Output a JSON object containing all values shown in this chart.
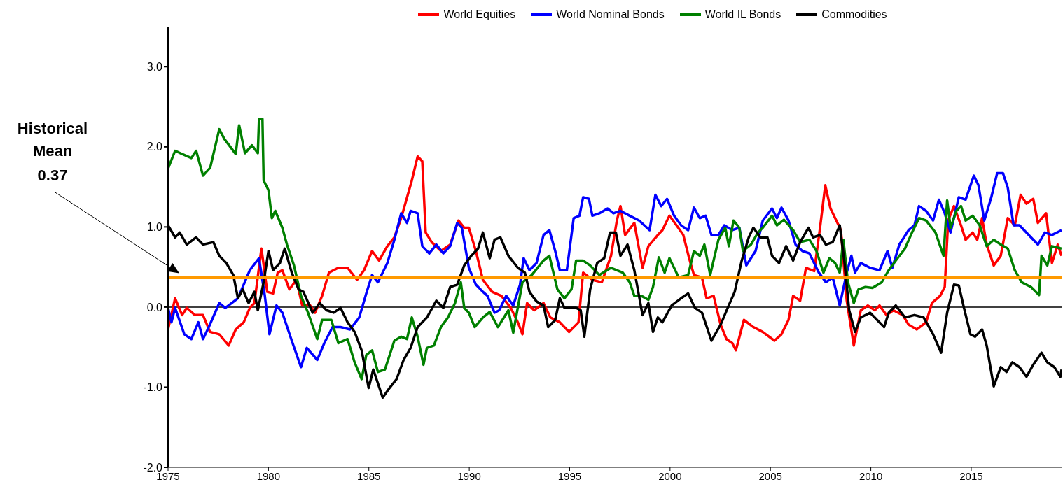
{
  "chart_data": {
    "type": "line",
    "xlim": [
      1975,
      2019.5
    ],
    "xticks": [
      1975,
      1980,
      1985,
      1990,
      1995,
      2000,
      2005,
      2010,
      2015
    ],
    "ylim": [
      -2,
      3.5
    ],
    "yticks": [
      {
        "value": -2,
        "label": "-2.0"
      },
      {
        "value": -1,
        "label": "-1.0"
      },
      {
        "value": 0,
        "label": "0.0"
      },
      {
        "value": 1,
        "label": "1.0"
      },
      {
        "value": 2,
        "label": "2.0"
      },
      {
        "value": 3,
        "label": "3.0"
      }
    ],
    "legend": "top",
    "marker": "none",
    "ref_lines": [
      {
        "axis": "y",
        "value": 0,
        "color": "#000000"
      },
      {
        "axis": "y",
        "value": 0.37,
        "color": "#ff9900"
      }
    ],
    "annotations": [
      "Historical Mean 0.37"
    ],
    "series": [
      {
        "name": "World Equities",
        "color": "#ff0000",
        "x": [
          1975,
          1975.35,
          1975.7,
          1975.93,
          1976.34,
          1976.74,
          1977.09,
          1977.55,
          1978.02,
          1978.37,
          1978.77,
          1979.07,
          1979.3,
          1979.65,
          1979.94,
          1980.23,
          1980.46,
          1980.69,
          1981.04,
          1981.39,
          1981.68,
          1982.08,
          1982.32,
          1982.67,
          1983.01,
          1983.48,
          1983.94,
          1984.41,
          1984.76,
          1985.16,
          1985.51,
          1985.92,
          1986.27,
          1986.61,
          1987.14,
          1987.43,
          1987.66,
          1987.83,
          1988.13,
          1988.59,
          1989.05,
          1989.46,
          1989.75,
          1989.98,
          1990.33,
          1990.68,
          1991.14,
          1991.6,
          1992.07,
          1992.42,
          1992.65,
          1992.88,
          1993.23,
          1993.7,
          1994.04,
          1994.51,
          1994.97,
          1995.44,
          1995.67,
          1996.13,
          1996.6,
          1997.06,
          1997.35,
          1997.53,
          1997.76,
          1998.22,
          1998.63,
          1998.92,
          1999.39,
          1999.62,
          1999.97,
          2000.32,
          2000.66,
          2000.95,
          2001.19,
          2001.59,
          2001.82,
          2002.17,
          2002.52,
          2002.81,
          2003.1,
          2003.28,
          2003.68,
          2004.15,
          2004.61,
          2005.2,
          2005.55,
          2005.9,
          2006.13,
          2006.48,
          2006.77,
          2007.18,
          2007.47,
          2007.73,
          2007.99,
          2008.28,
          2008.51,
          2008.8,
          2009.15,
          2009.5,
          2009.85,
          2010.2,
          2010.43,
          2010.78,
          2011.12,
          2011.59,
          2011.88,
          2012.29,
          2012.75,
          2013.04,
          2013.45,
          2013.68,
          2013.85,
          2014.14,
          2014.49,
          2014.72,
          2015.07,
          2015.3,
          2015.54,
          2015.77,
          2016.12,
          2016.47,
          2016.82,
          2017.17,
          2017.46,
          2017.75,
          2018.09,
          2018.32,
          2018.73,
          2019.02,
          2019.31,
          2019.5
        ],
        "values": [
          -0.28,
          0.11,
          -0.1,
          -0.01,
          -0.1,
          -0.1,
          -0.31,
          -0.34,
          -0.48,
          -0.28,
          -0.19,
          -0.01,
          0.05,
          0.73,
          0.19,
          0.17,
          0.43,
          0.46,
          0.22,
          0.34,
          0.02,
          0.02,
          -0.07,
          0.14,
          0.43,
          0.49,
          0.49,
          0.34,
          0.46,
          0.7,
          0.58,
          0.76,
          0.87,
          1.11,
          1.58,
          1.88,
          1.82,
          0.93,
          0.81,
          0.7,
          0.78,
          1.08,
          0.99,
          0.99,
          0.7,
          0.34,
          0.19,
          0.14,
          -0.01,
          -0.19,
          -0.34,
          0.05,
          -0.04,
          0.05,
          -0.13,
          -0.19,
          -0.31,
          -0.19,
          0.43,
          0.34,
          0.31,
          0.64,
          1.08,
          1.26,
          0.9,
          1.05,
          0.49,
          0.76,
          0.9,
          0.96,
          1.14,
          1.02,
          0.9,
          0.61,
          0.4,
          0.37,
          0.11,
          0.14,
          -0.22,
          -0.4,
          -0.45,
          -0.54,
          -0.16,
          -0.25,
          -0.31,
          -0.42,
          -0.34,
          -0.16,
          0.14,
          0.08,
          0.49,
          0.45,
          0.99,
          1.52,
          1.23,
          1.08,
          0.96,
          0.08,
          -0.48,
          -0.04,
          0.02,
          -0.04,
          0.02,
          -0.1,
          -0.04,
          -0.1,
          -0.22,
          -0.28,
          -0.19,
          0.05,
          0.14,
          0.25,
          1.08,
          1.26,
          1.02,
          0.84,
          0.93,
          0.84,
          1.11,
          0.78,
          0.52,
          0.64,
          1.11,
          1.02,
          1.4,
          1.29,
          1.35,
          1.05,
          1.17,
          0.55,
          0.78,
          0.64
        ]
      },
      {
        "name": "World Nominal Bonds",
        "color": "#0000ff",
        "x": [
          1975,
          1975.17,
          1975.35,
          1975.81,
          1976.16,
          1976.51,
          1976.74,
          1977.03,
          1977.55,
          1977.85,
          1978.48,
          1979.07,
          1979.53,
          1979.82,
          1980.05,
          1980.4,
          1980.69,
          1981.16,
          1981.62,
          1981.91,
          1982.43,
          1982.78,
          1983.19,
          1983.59,
          1984.06,
          1984.52,
          1984.87,
          1985.16,
          1985.45,
          1985.92,
          1986.27,
          1986.61,
          1986.9,
          1987.08,
          1987.43,
          1987.66,
          1988.01,
          1988.36,
          1988.71,
          1989.05,
          1989.4,
          1989.63,
          1989.98,
          1990.33,
          1990.68,
          1990.91,
          1991.26,
          1991.49,
          1991.84,
          1992.19,
          1992.53,
          1992.71,
          1993,
          1993.35,
          1993.7,
          1993.99,
          1994.28,
          1994.51,
          1994.86,
          1995.2,
          1995.49,
          1995.67,
          1995.96,
          1996.13,
          1996.48,
          1996.89,
          1997.18,
          1997.53,
          1997.99,
          1998.46,
          1998.98,
          1999.27,
          1999.56,
          1999.85,
          2000.2,
          2000.55,
          2000.9,
          2001.19,
          2001.48,
          2001.77,
          2002.06,
          2002.41,
          2002.7,
          2003.1,
          2003.45,
          2003.8,
          2004.26,
          2004.62,
          2005.08,
          2005.32,
          2005.55,
          2005.9,
          2006.25,
          2006.59,
          2006.94,
          2007.41,
          2007.76,
          2008.1,
          2008.45,
          2008.8,
          2009.03,
          2009.21,
          2009.5,
          2009.96,
          2010.43,
          2010.83,
          2011.07,
          2011.42,
          2011.88,
          2012.17,
          2012.4,
          2012.75,
          2013.1,
          2013.39,
          2013.68,
          2013.97,
          2014.38,
          2014.72,
          2015.13,
          2015.36,
          2015.65,
          2016,
          2016.29,
          2016.58,
          2016.82,
          2017.11,
          2017.4,
          2017.86,
          2018.32,
          2018.67,
          2019.02,
          2019.5
        ],
        "values": [
          -0.01,
          -0.19,
          -0.01,
          -0.34,
          -0.4,
          -0.19,
          -0.4,
          -0.25,
          0.05,
          -0.01,
          0.11,
          0.46,
          0.61,
          0.14,
          -0.34,
          0.02,
          -0.07,
          -0.42,
          -0.75,
          -0.51,
          -0.66,
          -0.45,
          -0.25,
          -0.25,
          -0.28,
          -0.13,
          0.17,
          0.4,
          0.31,
          0.55,
          0.84,
          1.17,
          1.05,
          1.2,
          1.17,
          0.76,
          0.67,
          0.78,
          0.67,
          0.76,
          1.05,
          0.99,
          0.49,
          0.28,
          0.19,
          0.14,
          -0.07,
          -0.04,
          0.14,
          0.02,
          0.28,
          0.61,
          0.46,
          0.55,
          0.9,
          0.96,
          0.7,
          0.46,
          0.46,
          1.11,
          1.14,
          1.37,
          1.35,
          1.14,
          1.17,
          1.23,
          1.17,
          1.2,
          1.14,
          1.08,
          0.96,
          1.4,
          1.26,
          1.35,
          1.14,
          1.02,
          0.96,
          1.24,
          1.11,
          1.14,
          0.9,
          0.9,
          1.02,
          0.96,
          0.99,
          0.52,
          0.7,
          1.08,
          1.23,
          1.11,
          1.24,
          1.08,
          0.78,
          0.7,
          0.67,
          0.43,
          0.31,
          0.37,
          0.02,
          0.43,
          0.64,
          0.43,
          0.55,
          0.49,
          0.46,
          0.7,
          0.49,
          0.78,
          0.96,
          1.02,
          1.26,
          1.2,
          1.08,
          1.34,
          1.17,
          0.93,
          1.37,
          1.34,
          1.64,
          1.52,
          1.08,
          1.37,
          1.67,
          1.67,
          1.49,
          1.02,
          1.02,
          0.9,
          0.78,
          0.93,
          0.9,
          0.96
        ]
      },
      {
        "name": "World IL Bonds",
        "color": "#008000",
        "x": [
          1975,
          1975.35,
          1976.16,
          1976.4,
          1976.74,
          1977.1,
          1977.55,
          1977.8,
          1978.37,
          1978.54,
          1978.83,
          1979.18,
          1979.47,
          1979.53,
          1979.7,
          1979.76,
          1980,
          1980.17,
          1980.34,
          1980.69,
          1980.92,
          1981.27,
          1981.62,
          1981.97,
          1982.43,
          1982.67,
          1983.13,
          1983.48,
          1983.94,
          1984.29,
          1984.64,
          1984.87,
          1985.16,
          1985.45,
          1985.8,
          1986.27,
          1986.61,
          1986.9,
          1987.14,
          1987.43,
          1987.72,
          1987.89,
          1988.24,
          1988.59,
          1988.94,
          1989.29,
          1989.58,
          1989.75,
          1989.98,
          1990.27,
          1990.68,
          1991.02,
          1991.43,
          1991.95,
          1992.19,
          1992.65,
          1993.11,
          1993.7,
          1993.99,
          1994.39,
          1994.74,
          1995.09,
          1995.32,
          1995.67,
          1996.02,
          1996.48,
          1997.06,
          1997.64,
          1997.99,
          1998.22,
          1998.57,
          1998.92,
          1999.15,
          1999.44,
          1999.73,
          1999.97,
          2000.43,
          2000.9,
          2001.19,
          2001.48,
          2001.71,
          2002,
          2002.41,
          2002.75,
          2002.93,
          2003.16,
          2003.45,
          2003.63,
          2004.03,
          2004.38,
          2004.62,
          2005.08,
          2005.32,
          2005.67,
          2006.13,
          2006.48,
          2006.94,
          2007.29,
          2007.64,
          2007.93,
          2008.22,
          2008.45,
          2008.63,
          2008.86,
          2009.15,
          2009.38,
          2009.73,
          2010.08,
          2010.54,
          2010.89,
          2011.24,
          2011.7,
          2012.05,
          2012.4,
          2012.75,
          2013.22,
          2013.62,
          2013.8,
          2013.97,
          2014.26,
          2014.49,
          2014.72,
          2015.07,
          2015.42,
          2015.77,
          2016.12,
          2016.47,
          2016.82,
          2017.17,
          2017.51,
          2017.98,
          2018.38,
          2018.5,
          2018.79,
          2019.02,
          2019.5
        ],
        "values": [
          1.73,
          1.95,
          1.86,
          1.95,
          1.64,
          1.74,
          2.22,
          2.1,
          1.91,
          2.27,
          1.92,
          2.02,
          1.92,
          2.35,
          2.35,
          1.58,
          1.46,
          1.11,
          1.2,
          0.99,
          0.78,
          0.52,
          0.14,
          -0.07,
          -0.4,
          -0.16,
          -0.16,
          -0.45,
          -0.4,
          -0.69,
          -0.9,
          -0.6,
          -0.54,
          -0.81,
          -0.78,
          -0.42,
          -0.37,
          -0.4,
          -0.13,
          -0.37,
          -0.72,
          -0.51,
          -0.48,
          -0.25,
          -0.13,
          0.05,
          0.31,
          -0.01,
          -0.07,
          -0.25,
          -0.13,
          -0.06,
          -0.25,
          -0.04,
          -0.32,
          0.31,
          0.4,
          0.58,
          0.64,
          0.22,
          0.11,
          0.22,
          0.58,
          0.58,
          0.52,
          0.4,
          0.49,
          0.43,
          0.31,
          0.14,
          0.14,
          0.09,
          0.25,
          0.62,
          0.43,
          0.61,
          0.37,
          0.4,
          0.7,
          0.64,
          0.78,
          0.4,
          0.84,
          0.99,
          0.76,
          1.08,
          0.99,
          0.7,
          0.78,
          0.93,
          0.99,
          1.14,
          1.02,
          1.09,
          0.96,
          0.81,
          0.84,
          0.7,
          0.43,
          0.61,
          0.55,
          0.43,
          0.84,
          0.31,
          0.05,
          0.22,
          0.25,
          0.24,
          0.31,
          0.46,
          0.58,
          0.73,
          0.93,
          1.11,
          1.08,
          0.93,
          0.64,
          1.33,
          0.99,
          1.2,
          1.26,
          1.08,
          1.14,
          1.02,
          0.76,
          0.84,
          0.78,
          0.73,
          0.46,
          0.31,
          0.25,
          0.15,
          0.64,
          0.52,
          0.76,
          0.73
        ]
      },
      {
        "name": "Commodities",
        "color": "#000000",
        "x": [
          1975,
          1975.35,
          1975.58,
          1975.93,
          1976.39,
          1976.74,
          1977.26,
          1977.55,
          1977.9,
          1978.25,
          1978.48,
          1978.72,
          1979.01,
          1979.3,
          1979.47,
          1979.76,
          1980,
          1980.23,
          1980.57,
          1980.81,
          1981.16,
          1981.5,
          1981.74,
          1982.2,
          1982.55,
          1982.9,
          1983.25,
          1983.59,
          1983.94,
          1984.29,
          1984.64,
          1984.99,
          1985.22,
          1985.69,
          1986.03,
          1986.38,
          1986.73,
          1987.08,
          1987.43,
          1987.89,
          1988.36,
          1988.71,
          1989.05,
          1989.4,
          1989.75,
          1990.1,
          1990.44,
          1990.68,
          1991.02,
          1991.26,
          1991.55,
          1991.95,
          1992.42,
          1992.77,
          1993,
          1993.35,
          1993.7,
          1993.93,
          1994.28,
          1994.51,
          1994.74,
          1995.32,
          1995.55,
          1995.73,
          1996.02,
          1996.37,
          1996.72,
          1997.01,
          1997.3,
          1997.53,
          1997.88,
          1998.22,
          1998.63,
          1998.92,
          1999.15,
          1999.39,
          1999.62,
          2000.08,
          2000.55,
          2000.9,
          2001.24,
          2001.59,
          2002.06,
          2002.52,
          2002.87,
          2003.22,
          2003.57,
          2003.92,
          2004.15,
          2004.5,
          2004.85,
          2005.08,
          2005.43,
          2005.78,
          2006.13,
          2006.48,
          2006.89,
          2007.12,
          2007.47,
          2007.76,
          2008.1,
          2008.45,
          2008.69,
          2008.92,
          2009.21,
          2009.5,
          2009.96,
          2010.31,
          2010.66,
          2010.89,
          2011.24,
          2011.7,
          2012.17,
          2012.63,
          2013.1,
          2013.5,
          2013.8,
          2014.14,
          2014.38,
          2014.61,
          2014.96,
          2015.19,
          2015.54,
          2015.77,
          2016.12,
          2016.47,
          2016.76,
          2017.05,
          2017.4,
          2017.75,
          2018.09,
          2018.5,
          2018.79,
          2019.14,
          2019.44,
          2019.5
        ],
        "values": [
          1.02,
          0.87,
          0.93,
          0.78,
          0.87,
          0.78,
          0.81,
          0.64,
          0.55,
          0.4,
          0.11,
          0.22,
          0.05,
          0.19,
          -0.04,
          0.31,
          0.7,
          0.46,
          0.55,
          0.73,
          0.43,
          0.22,
          0.19,
          -0.07,
          0.05,
          -0.04,
          -0.07,
          -0.01,
          -0.19,
          -0.31,
          -0.54,
          -1.01,
          -0.78,
          -1.13,
          -1.01,
          -0.9,
          -0.66,
          -0.51,
          -0.25,
          -0.13,
          0.08,
          -0.01,
          0.25,
          0.28,
          0.52,
          0.64,
          0.73,
          0.93,
          0.61,
          0.84,
          0.87,
          0.64,
          0.49,
          0.43,
          0.19,
          0.07,
          0.02,
          -0.25,
          -0.16,
          0.11,
          -0.01,
          -0.01,
          -0.04,
          -0.37,
          0.22,
          0.55,
          0.61,
          0.93,
          0.93,
          0.64,
          0.78,
          0.46,
          -0.1,
          0.05,
          -0.31,
          -0.13,
          -0.19,
          0.02,
          0.11,
          0.17,
          -0.01,
          -0.07,
          -0.42,
          -0.22,
          -0.01,
          0.19,
          0.58,
          0.87,
          0.99,
          0.87,
          0.87,
          0.64,
          0.55,
          0.76,
          0.58,
          0.81,
          0.99,
          0.87,
          0.9,
          0.78,
          0.81,
          1.02,
          0.55,
          -0.04,
          -0.31,
          -0.13,
          -0.07,
          -0.16,
          -0.25,
          -0.07,
          0.02,
          -0.13,
          -0.1,
          -0.13,
          -0.34,
          -0.57,
          -0.07,
          0.28,
          0.27,
          0.02,
          -0.34,
          -0.37,
          -0.28,
          -0.48,
          -0.99,
          -0.75,
          -0.81,
          -0.69,
          -0.75,
          -0.87,
          -0.72,
          -0.57,
          -0.69,
          -0.75,
          -0.87,
          -0.78
        ]
      }
    ]
  }
}
